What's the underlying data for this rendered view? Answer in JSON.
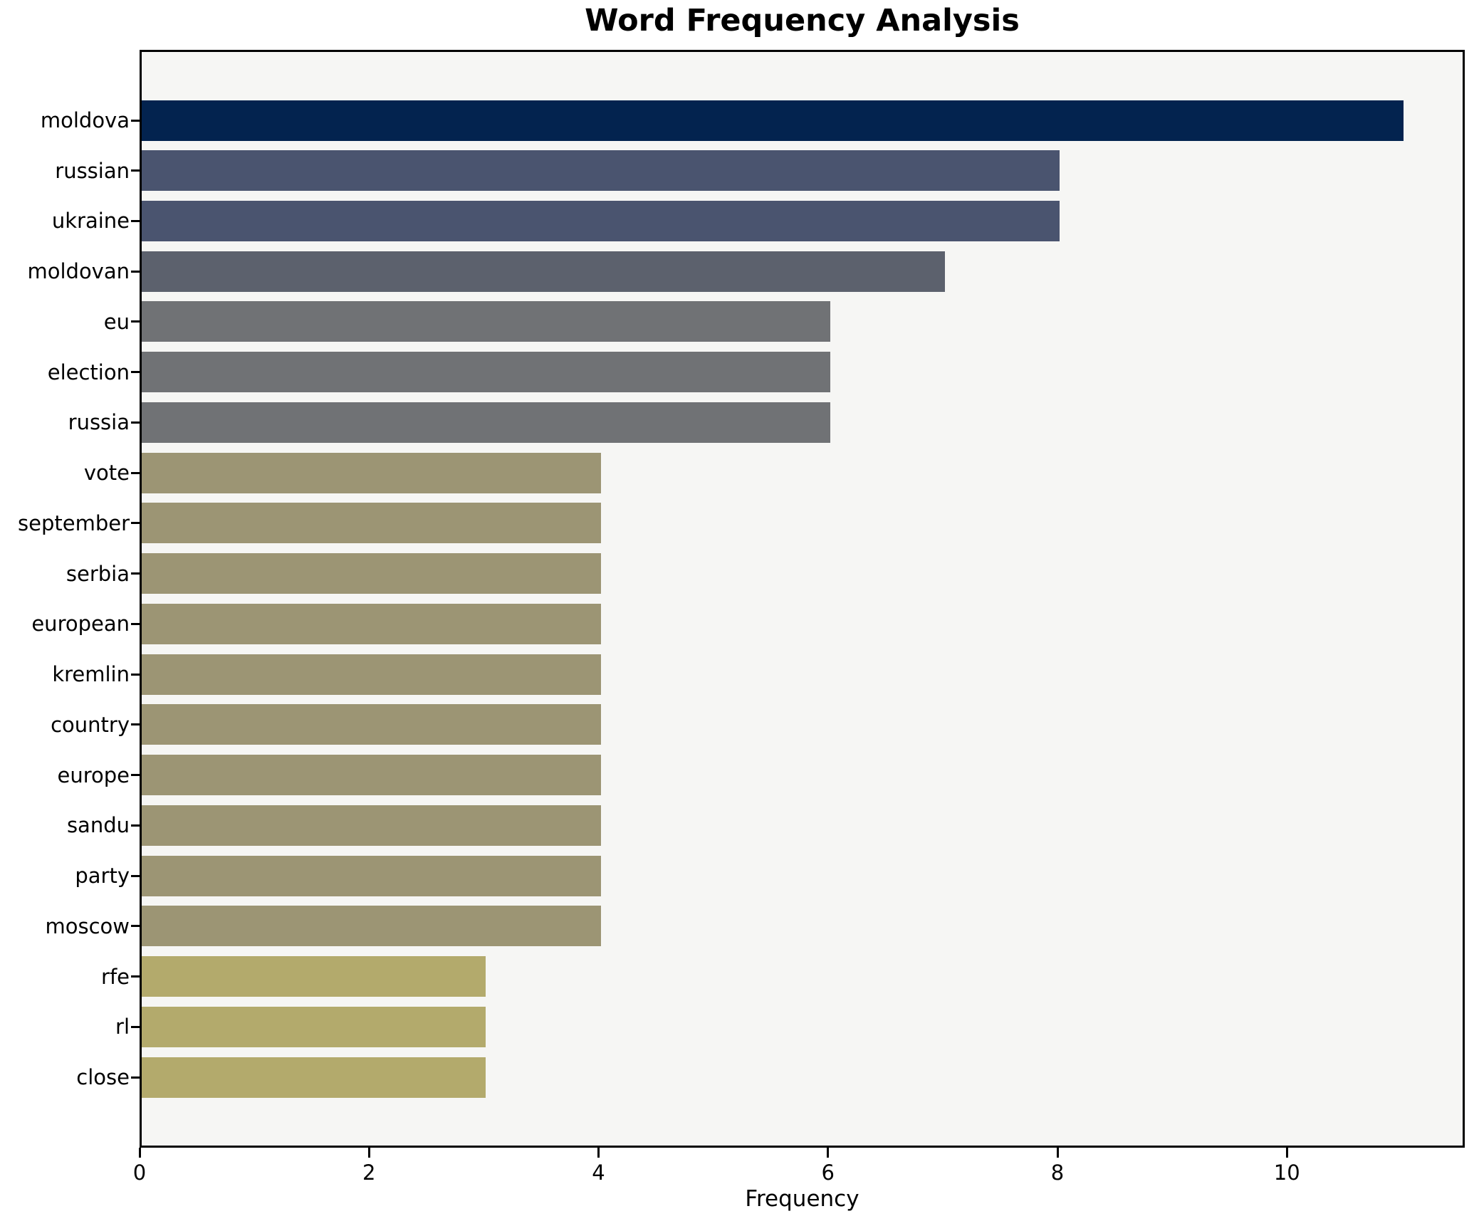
{
  "chart_data": {
    "type": "bar",
    "orientation": "horizontal",
    "title": "Word Frequency Analysis",
    "xlabel": "Frequency",
    "ylabel": "",
    "categories": [
      "moldova",
      "russian",
      "ukraine",
      "moldovan",
      "eu",
      "election",
      "russia",
      "vote",
      "september",
      "serbia",
      "european",
      "kremlin",
      "country",
      "europe",
      "sandu",
      "party",
      "moscow",
      "rfe",
      "rl",
      "close"
    ],
    "values": [
      11,
      8,
      8,
      7,
      6,
      6,
      6,
      4,
      4,
      4,
      4,
      4,
      4,
      4,
      4,
      4,
      4,
      3,
      3,
      3
    ],
    "bar_colors": [
      "#03234f",
      "#4a546f",
      "#4a546f",
      "#5c616d",
      "#707275",
      "#707275",
      "#707275",
      "#9c9574",
      "#9c9574",
      "#9c9574",
      "#9c9574",
      "#9c9574",
      "#9c9574",
      "#9c9574",
      "#9c9574",
      "#9c9574",
      "#9c9574",
      "#b3aa6c",
      "#b3aa6c",
      "#b3aa6c"
    ],
    "xticks": [
      0,
      2,
      4,
      6,
      8,
      10
    ],
    "xlim": [
      0,
      11.55
    ],
    "grid": false,
    "legend": null,
    "plot_background": "#f6f6f4",
    "figure_background": "#ffffff",
    "spine_color": "#000000",
    "text_color": "#000000"
  }
}
